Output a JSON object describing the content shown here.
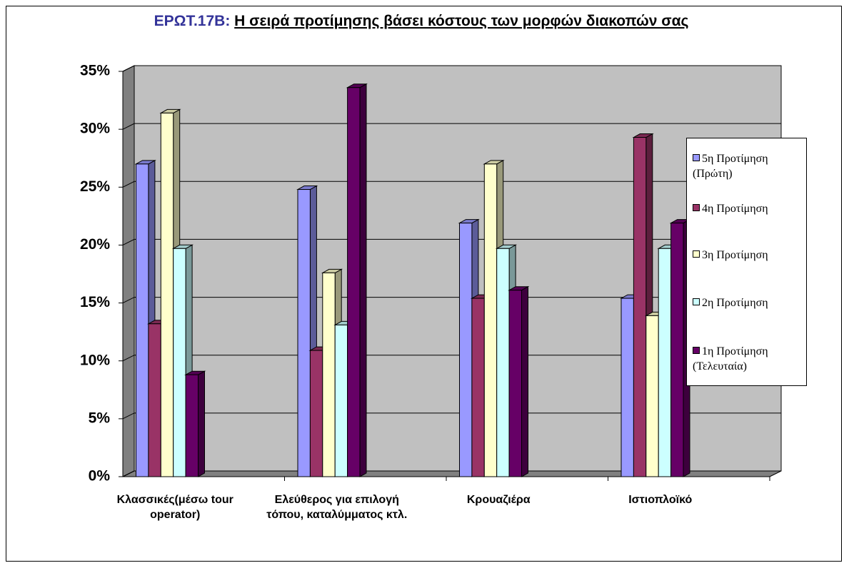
{
  "chart_data": {
    "type": "bar3d",
    "title_code": "ΕΡΩΤ.17Β:",
    "title": "Η σειρά προτίμησης βάσει κόστους των μορφών διακοπών σας",
    "categories": [
      "Κλασσικές(μέσω tour operator)",
      "Ελεύθερος για επιλογή τόπου, καταλύμματος κτλ.",
      "Κρουαζιέρα",
      "Ιστιοπλοϊκό"
    ],
    "series": [
      {
        "name": "5η Προτίμηση (Πρώτη)",
        "color": "#9999ff",
        "values": [
          27.0,
          24.8,
          21.9,
          15.4
        ]
      },
      {
        "name": "4η Προτίμηση",
        "color": "#993366",
        "values": [
          13.2,
          10.9,
          15.4,
          29.3
        ]
      },
      {
        "name": "3η Προτίμηση",
        "color": "#ffffcc",
        "values": [
          31.4,
          17.6,
          27.0,
          13.9
        ]
      },
      {
        "name": "2η Προτίμηση",
        "color": "#ccffff",
        "values": [
          19.7,
          13.1,
          19.7,
          19.7
        ]
      },
      {
        "name": "1η Προτίμηση (Τελευταία)",
        "color": "#660066",
        "values": [
          8.8,
          33.6,
          16.1,
          21.9
        ]
      }
    ],
    "ylim": [
      0,
      35
    ],
    "yticks": [
      {
        "value": 0,
        "label": "0%"
      },
      {
        "value": 5,
        "label": "5%"
      },
      {
        "value": 10,
        "label": "10%"
      },
      {
        "value": 15,
        "label": "15%"
      },
      {
        "value": 20,
        "label": "20%"
      },
      {
        "value": 25,
        "label": "25%"
      },
      {
        "value": 30,
        "label": "30%"
      },
      {
        "value": 35,
        "label": "35%"
      }
    ],
    "grid": true
  }
}
